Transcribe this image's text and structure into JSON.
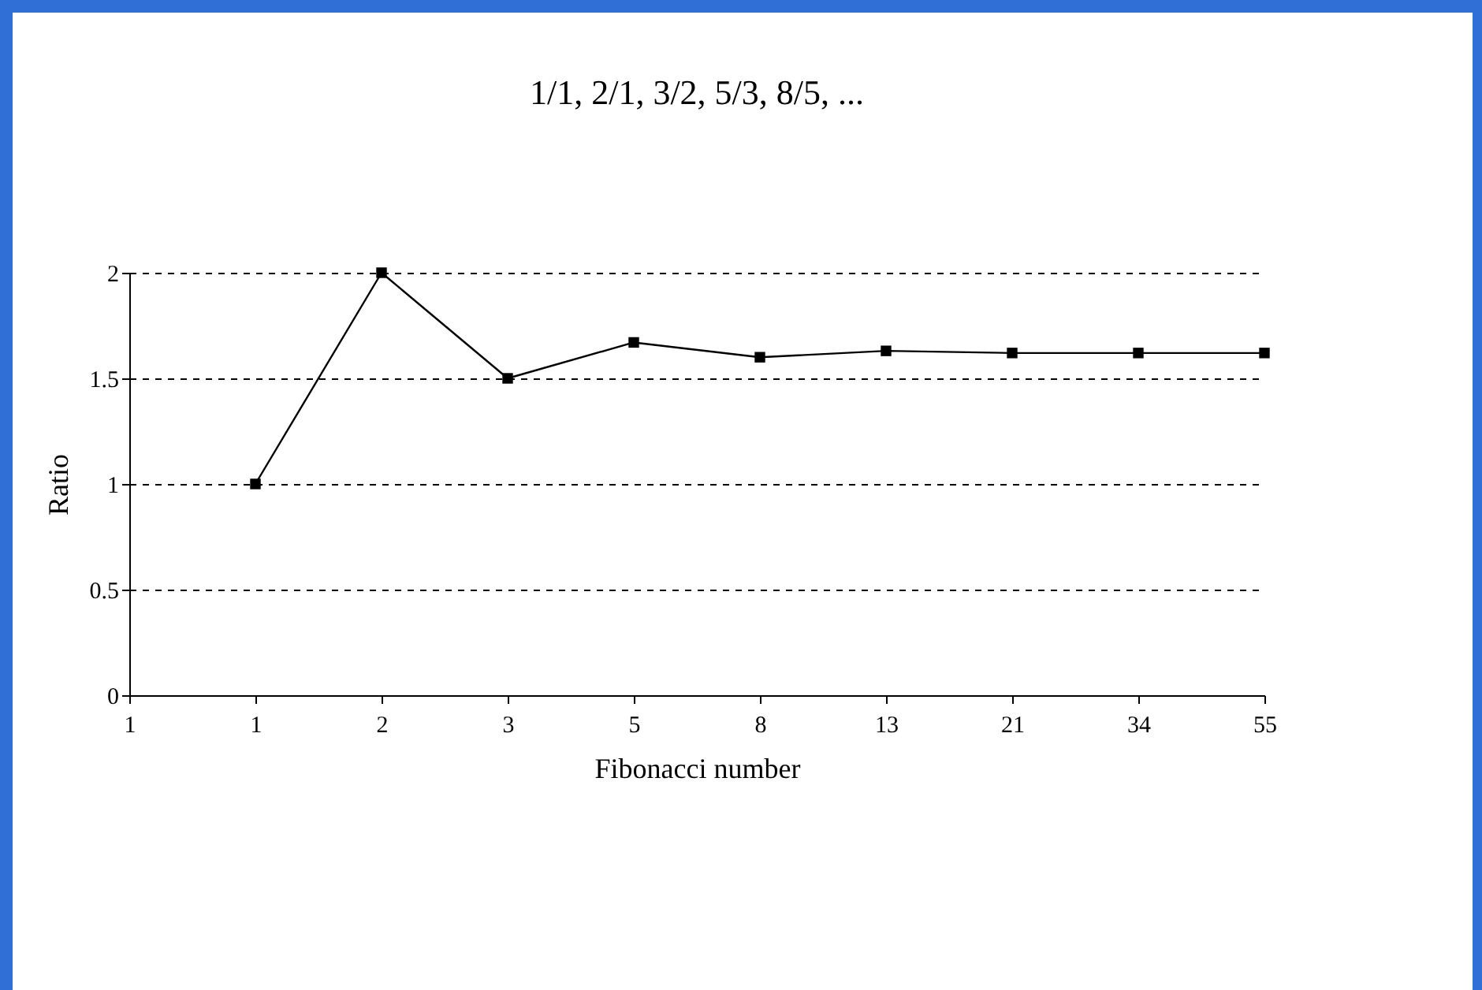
{
  "chart_data": {
    "type": "line",
    "title": "1/1, 2/1, 3/2, 5/3, 8/5, ...",
    "xlabel": "Fibonacci number",
    "ylabel": "Ratio",
    "categories": [
      "1",
      "1",
      "2",
      "3",
      "5",
      "8",
      "13",
      "21",
      "34",
      "55"
    ],
    "series": [
      {
        "color": "#000000",
        "values": [
          null,
          1,
          2,
          1.5,
          1.67,
          1.6,
          1.63,
          1.62,
          1.62,
          1.62
        ]
      }
    ],
    "ylim": [
      0,
      2
    ],
    "yticks": [
      0,
      0.5,
      1,
      1.5,
      2
    ],
    "grid": "y",
    "marker": "square",
    "line_style": "solid"
  }
}
